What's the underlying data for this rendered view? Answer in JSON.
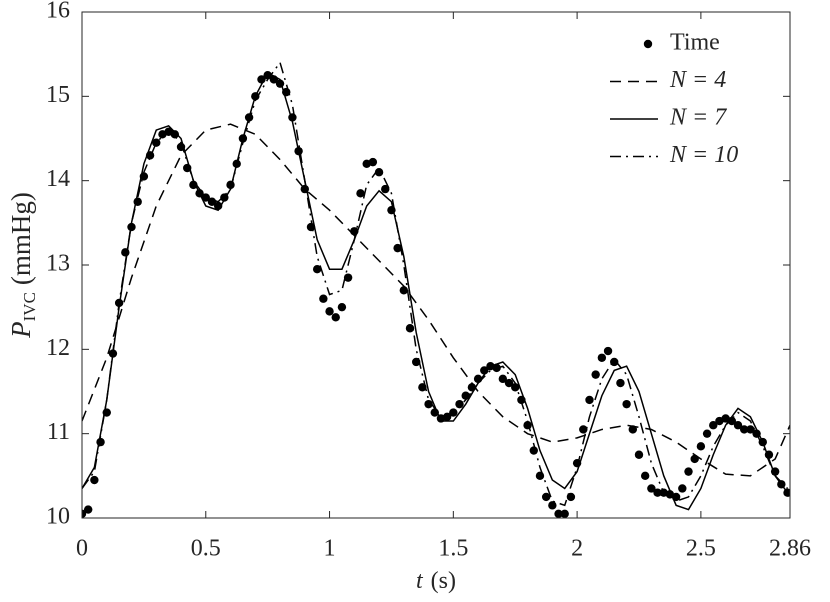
{
  "chart_data": {
    "type": "line",
    "xlabel": "t",
    "xlabel_unit": "(s)",
    "ylabel": "P",
    "ylabel_sub": "IVC",
    "ylabel_unit": "(mmHg)",
    "xlim": [
      0,
      2.86
    ],
    "xticks": [
      0,
      0.5,
      1,
      1.5,
      2,
      2.5,
      2.86
    ],
    "ylim": [
      10,
      16
    ],
    "yticks": [
      10,
      11,
      12,
      13,
      14,
      15,
      16
    ],
    "legend": "top-right",
    "box": true,
    "series": [
      {
        "name": "Time",
        "color": "#000000",
        "style": "marker",
        "x": [
          0,
          0.025,
          0.05,
          0.075,
          0.1,
          0.125,
          0.15,
          0.175,
          0.2,
          0.225,
          0.25,
          0.275,
          0.3,
          0.325,
          0.35,
          0.375,
          0.4,
          0.425,
          0.45,
          0.475,
          0.5,
          0.525,
          0.55,
          0.575,
          0.6,
          0.625,
          0.65,
          0.675,
          0.7,
          0.725,
          0.75,
          0.775,
          0.8,
          0.825,
          0.85,
          0.875,
          0.9,
          0.925,
          0.95,
          0.975,
          1,
          1.025,
          1.05,
          1.075,
          1.1,
          1.125,
          1.15,
          1.175,
          1.2,
          1.225,
          1.25,
          1.275,
          1.3,
          1.325,
          1.35,
          1.375,
          1.4,
          1.425,
          1.45,
          1.475,
          1.5,
          1.525,
          1.55,
          1.575,
          1.6,
          1.625,
          1.65,
          1.675,
          1.7,
          1.725,
          1.75,
          1.775,
          1.8,
          1.825,
          1.85,
          1.875,
          1.9,
          1.925,
          1.95,
          1.975,
          2,
          2.025,
          2.05,
          2.075,
          2.1,
          2.125,
          2.15,
          2.175,
          2.2,
          2.225,
          2.25,
          2.275,
          2.3,
          2.325,
          2.35,
          2.375,
          2.4,
          2.425,
          2.45,
          2.475,
          2.5,
          2.525,
          2.55,
          2.575,
          2.6,
          2.625,
          2.65,
          2.675,
          2.7,
          2.725,
          2.75,
          2.775,
          2.8,
          2.825,
          2.85
        ],
        "values": [
          10.05,
          10.1,
          10.45,
          10.9,
          11.25,
          11.95,
          12.55,
          13.15,
          13.45,
          13.75,
          14.05,
          14.3,
          14.45,
          14.55,
          14.58,
          14.55,
          14.4,
          14.15,
          13.95,
          13.85,
          13.8,
          13.75,
          13.7,
          13.8,
          13.95,
          14.2,
          14.5,
          14.75,
          15,
          15.2,
          15.25,
          15.2,
          15.15,
          15.05,
          14.75,
          14.35,
          13.9,
          13.45,
          12.95,
          12.6,
          12.45,
          12.38,
          12.5,
          12.85,
          13.4,
          13.85,
          14.2,
          14.22,
          14.1,
          13.9,
          13.65,
          13.2,
          12.7,
          12.25,
          11.85,
          11.55,
          11.35,
          11.25,
          11.18,
          11.2,
          11.25,
          11.35,
          11.45,
          11.55,
          11.65,
          11.75,
          11.8,
          11.78,
          11.65,
          11.6,
          11.55,
          11.4,
          11.1,
          10.8,
          10.5,
          10.25,
          10.15,
          10.05,
          10.05,
          10.25,
          10.65,
          11.05,
          11.4,
          11.7,
          11.9,
          11.98,
          11.85,
          11.6,
          11.35,
          11.05,
          10.75,
          10.5,
          10.35,
          10.3,
          10.3,
          10.28,
          10.25,
          10.35,
          10.55,
          10.7,
          10.85,
          11,
          11.1,
          11.15,
          11.18,
          11.15,
          11.1,
          11.05,
          11.05,
          11,
          10.9,
          10.75,
          10.55,
          10.4,
          10.3
        ]
      },
      {
        "name": "N = 4",
        "color": "#000000",
        "style": "dashed",
        "x": [
          0,
          0.1,
          0.2,
          0.3,
          0.4,
          0.5,
          0.6,
          0.7,
          0.8,
          0.9,
          1,
          1.1,
          1.2,
          1.3,
          1.4,
          1.5,
          1.6,
          1.7,
          1.8,
          1.9,
          2,
          2.1,
          2.2,
          2.3,
          2.4,
          2.5,
          2.6,
          2.7,
          2.8,
          2.86
        ],
        "values": [
          11.15,
          11.9,
          12.85,
          13.7,
          14.3,
          14.6,
          14.67,
          14.55,
          14.25,
          13.9,
          13.65,
          13.35,
          13.05,
          12.75,
          12.35,
          11.9,
          11.5,
          11.2,
          11,
          10.9,
          10.95,
          11.05,
          11.1,
          11.05,
          10.9,
          10.7,
          10.52,
          10.5,
          10.7,
          11.1
        ]
      },
      {
        "name": "N = 7",
        "color": "#000000",
        "style": "solid",
        "x": [
          0,
          0.05,
          0.1,
          0.15,
          0.2,
          0.25,
          0.3,
          0.35,
          0.4,
          0.45,
          0.5,
          0.55,
          0.6,
          0.65,
          0.7,
          0.75,
          0.8,
          0.85,
          0.9,
          0.95,
          1,
          1.05,
          1.1,
          1.15,
          1.2,
          1.25,
          1.3,
          1.35,
          1.4,
          1.45,
          1.5,
          1.55,
          1.6,
          1.65,
          1.7,
          1.75,
          1.8,
          1.85,
          1.9,
          1.95,
          2,
          2.05,
          2.1,
          2.15,
          2.2,
          2.25,
          2.3,
          2.35,
          2.4,
          2.45,
          2.5,
          2.55,
          2.6,
          2.65,
          2.7,
          2.75,
          2.8,
          2.85
        ],
        "values": [
          10.35,
          10.6,
          11.4,
          12.5,
          13.5,
          14.2,
          14.6,
          14.65,
          14.5,
          14,
          13.7,
          13.65,
          13.9,
          14.5,
          15,
          15.28,
          15.2,
          14.7,
          14,
          13.3,
          12.95,
          12.95,
          13.3,
          13.7,
          13.88,
          13.75,
          13.1,
          12.2,
          11.5,
          11.15,
          11.15,
          11.35,
          11.6,
          11.8,
          11.85,
          11.7,
          11.3,
          10.8,
          10.45,
          10.35,
          10.55,
          11,
          11.45,
          11.75,
          11.8,
          11.5,
          11,
          10.5,
          10.15,
          10.1,
          10.35,
          10.75,
          11.1,
          11.3,
          11.2,
          10.9,
          10.5,
          10.3
        ]
      },
      {
        "name": "N = 10",
        "color": "#000000",
        "style": "dashdot",
        "x": [
          0,
          0.05,
          0.1,
          0.15,
          0.2,
          0.25,
          0.3,
          0.35,
          0.4,
          0.45,
          0.5,
          0.55,
          0.6,
          0.65,
          0.7,
          0.75,
          0.8,
          0.85,
          0.9,
          0.95,
          1,
          1.05,
          1.1,
          1.15,
          1.2,
          1.25,
          1.3,
          1.35,
          1.4,
          1.45,
          1.5,
          1.55,
          1.6,
          1.65,
          1.7,
          1.75,
          1.8,
          1.85,
          1.9,
          1.95,
          2,
          2.05,
          2.1,
          2.15,
          2.2,
          2.25,
          2.3,
          2.35,
          2.4,
          2.45,
          2.5,
          2.55,
          2.6,
          2.65,
          2.7,
          2.75,
          2.8,
          2.85
        ],
        "values": [
          10.35,
          10.55,
          11.4,
          12.55,
          13.5,
          14.1,
          14.45,
          14.6,
          14.45,
          14,
          13.8,
          13.75,
          13.9,
          14.45,
          14.95,
          15.2,
          15.4,
          14.9,
          14,
          13.1,
          12.65,
          12.7,
          13.3,
          13.95,
          14.15,
          13.85,
          13,
          12,
          11.4,
          11.2,
          11.25,
          11.4,
          11.6,
          11.75,
          11.8,
          11.6,
          11.15,
          10.6,
          10.2,
          10.15,
          10.6,
          11.2,
          11.65,
          11.88,
          11.7,
          11.2,
          10.65,
          10.3,
          10.2,
          10.25,
          10.5,
          10.85,
          11.1,
          11.25,
          11.15,
          10.85,
          10.5,
          10.35
        ]
      }
    ]
  }
}
